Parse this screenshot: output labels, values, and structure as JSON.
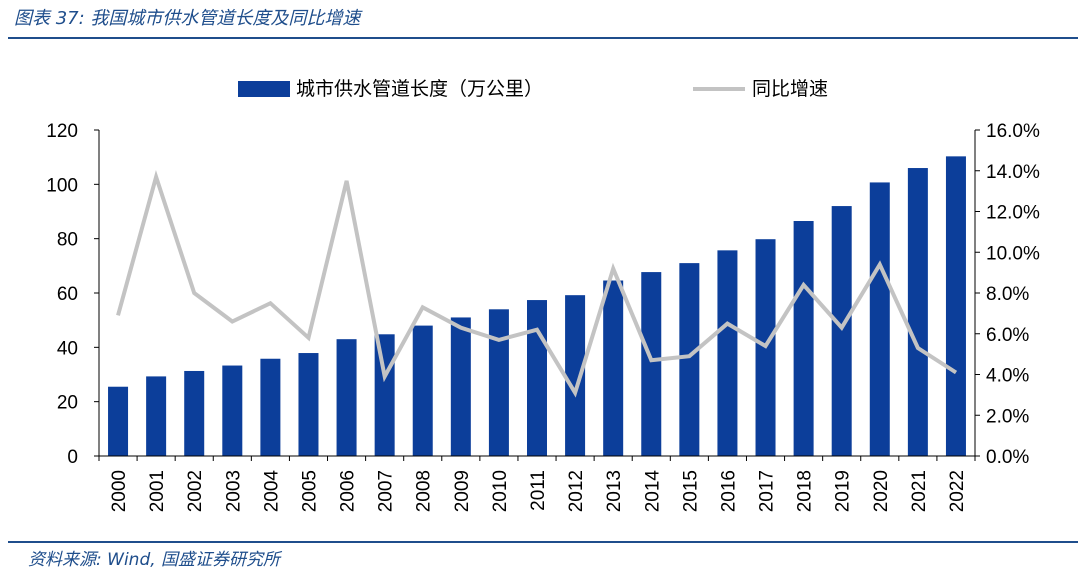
{
  "figure": {
    "title": "图表 37: 我国城市供水管道长度及同比增速",
    "source": "资料来源: Wind, 国盛证券研究所"
  },
  "colors": {
    "bar": "#0c3e9a",
    "line": "#c3c3c3",
    "rule": "#1f4e8c",
    "axis": "#000000"
  },
  "chart_data": {
    "type": "bar",
    "categories": [
      "2000",
      "2001",
      "2002",
      "2003",
      "2004",
      "2005",
      "2006",
      "2007",
      "2008",
      "2009",
      "2010",
      "2011",
      "2012",
      "2013",
      "2014",
      "2015",
      "2016",
      "2017",
      "2018",
      "2019",
      "2020",
      "2021",
      "2022"
    ],
    "series": [
      {
        "name": "城市供水管道长度（万公里）",
        "type": "bar",
        "axis": "left",
        "values": [
          25.5,
          29.3,
          31.3,
          33.3,
          35.8,
          37.9,
          43.0,
          44.8,
          48.0,
          51.0,
          54.0,
          57.4,
          59.2,
          64.6,
          67.7,
          71.0,
          75.7,
          79.8,
          86.5,
          92.0,
          100.7,
          106.0,
          110.3
        ]
      },
      {
        "name": "同比增速",
        "type": "line",
        "axis": "right",
        "values": [
          6.9,
          13.7,
          8.0,
          6.6,
          7.5,
          5.8,
          13.5,
          3.9,
          7.3,
          6.3,
          5.7,
          6.2,
          3.1,
          9.2,
          4.7,
          4.9,
          6.5,
          5.4,
          8.4,
          6.3,
          9.4,
          5.3,
          4.1
        ]
      }
    ],
    "ylim_left": [
      0,
      120
    ],
    "yticks_left": [
      "0",
      "20",
      "40",
      "60",
      "80",
      "100",
      "120"
    ],
    "ylim_right": [
      0,
      16
    ],
    "yticks_right": [
      "0.0%",
      "2.0%",
      "4.0%",
      "6.0%",
      "8.0%",
      "10.0%",
      "12.0%",
      "14.0%",
      "16.0%"
    ],
    "legend_position": "top-center",
    "grid": false
  }
}
